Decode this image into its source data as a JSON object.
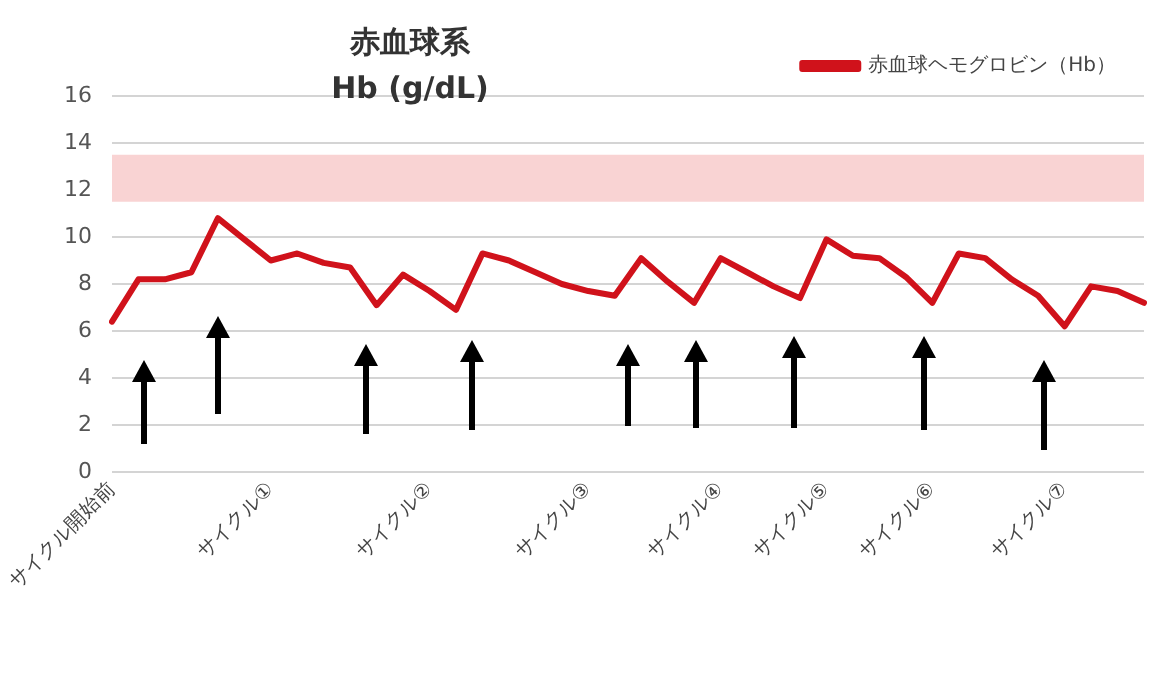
{
  "chart_data": {
    "type": "line",
    "title": "赤血球系",
    "subtitle": "Hb (g/dL)",
    "categories": [
      "サイクル開始前",
      null,
      null,
      null,
      null,
      null,
      "サイクル①",
      null,
      null,
      null,
      null,
      null,
      "サイクル②",
      null,
      null,
      null,
      null,
      null,
      "サイクル③",
      null,
      null,
      null,
      null,
      "サイクル④",
      null,
      null,
      null,
      "サイクル⑤",
      null,
      null,
      null,
      "サイクル⑥",
      null,
      null,
      null,
      null,
      "サイクル⑦",
      null,
      null,
      null
    ],
    "series": [
      {
        "name": "赤血球ヘモグロビン（Hb）",
        "color": "#d0121b",
        "values": [
          6.4,
          8.2,
          8.2,
          8.5,
          10.8,
          9.9,
          9.0,
          9.3,
          8.9,
          8.7,
          7.1,
          8.4,
          7.7,
          6.9,
          9.3,
          9.0,
          8.5,
          8.0,
          7.7,
          7.5,
          9.1,
          8.1,
          7.2,
          9.1,
          8.5,
          7.9,
          7.4,
          9.9,
          9.2,
          9.1,
          8.3,
          7.2,
          9.3,
          9.1,
          8.2,
          7.5,
          6.2,
          7.9,
          7.7,
          7.2
        ]
      }
    ],
    "ylim": [
      0,
      16
    ],
    "yticks": [
      0,
      2,
      4,
      6,
      8,
      10,
      12,
      14,
      16
    ],
    "bands": [
      {
        "axis": "y",
        "from": 11.5,
        "to": 13.5,
        "color": "#f9d3d3"
      }
    ],
    "grid": "y",
    "legend": "top right",
    "marker": "none",
    "line_style": "solid"
  }
}
